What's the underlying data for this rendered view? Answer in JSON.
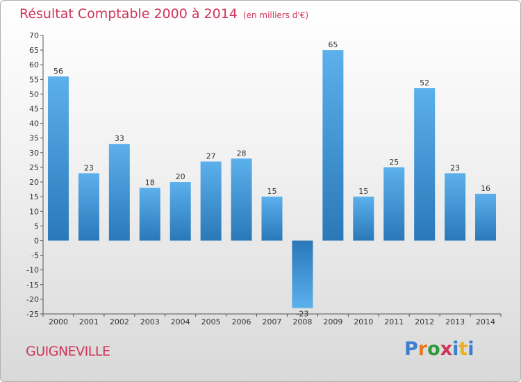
{
  "chart_data": {
    "type": "bar",
    "title": "Résultat Comptable 2000 à 2014",
    "subtitle": "(en milliers d'€)",
    "categories": [
      "2000",
      "2001",
      "2002",
      "2003",
      "2004",
      "2005",
      "2006",
      "2007",
      "2008",
      "2009",
      "2010",
      "2011",
      "2012",
      "2013",
      "2014"
    ],
    "values": [
      56,
      23,
      33,
      18,
      20,
      27,
      28,
      15,
      -23,
      65,
      15,
      25,
      52,
      23,
      16
    ],
    "ylim": [
      -25,
      70
    ],
    "yticks": [
      -25,
      -20,
      -15,
      -10,
      -5,
      0,
      5,
      10,
      15,
      20,
      25,
      30,
      35,
      40,
      45,
      50,
      55,
      60,
      65,
      70
    ],
    "xlabel": "",
    "ylabel": "",
    "grid": false,
    "bar_color": "#3a8fd4"
  },
  "footer": {
    "town": "GUIGNEVILLE"
  },
  "logo": {
    "letters": [
      "P",
      "r",
      "o",
      "x",
      "i",
      "t",
      "i"
    ],
    "colors": [
      "#3a7fd0",
      "#e87722",
      "#2a9a3a",
      "#d0345a",
      "#3a7fd0",
      "#e8b020",
      "#3a7fd0"
    ]
  }
}
